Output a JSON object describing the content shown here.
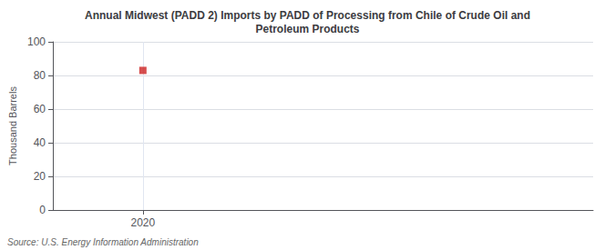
{
  "chart_data": {
    "type": "scatter",
    "title": "Annual Midwest (PADD 2) Imports by PADD of Processing from Chile of Crude Oil and\nPetroleum Products",
    "ylabel": "Thousand Barrels",
    "source": "Source: U.S. Energy Information Administration",
    "x": [
      2020
    ],
    "values": [
      83
    ],
    "color": "#cc2222",
    "marker": "square",
    "xlim": [
      2019.6,
      2022.0
    ],
    "ylim": [
      0,
      100
    ],
    "xticks": [
      2020
    ],
    "yticks": [
      0,
      20,
      40,
      60,
      80,
      100
    ],
    "grid": true
  }
}
